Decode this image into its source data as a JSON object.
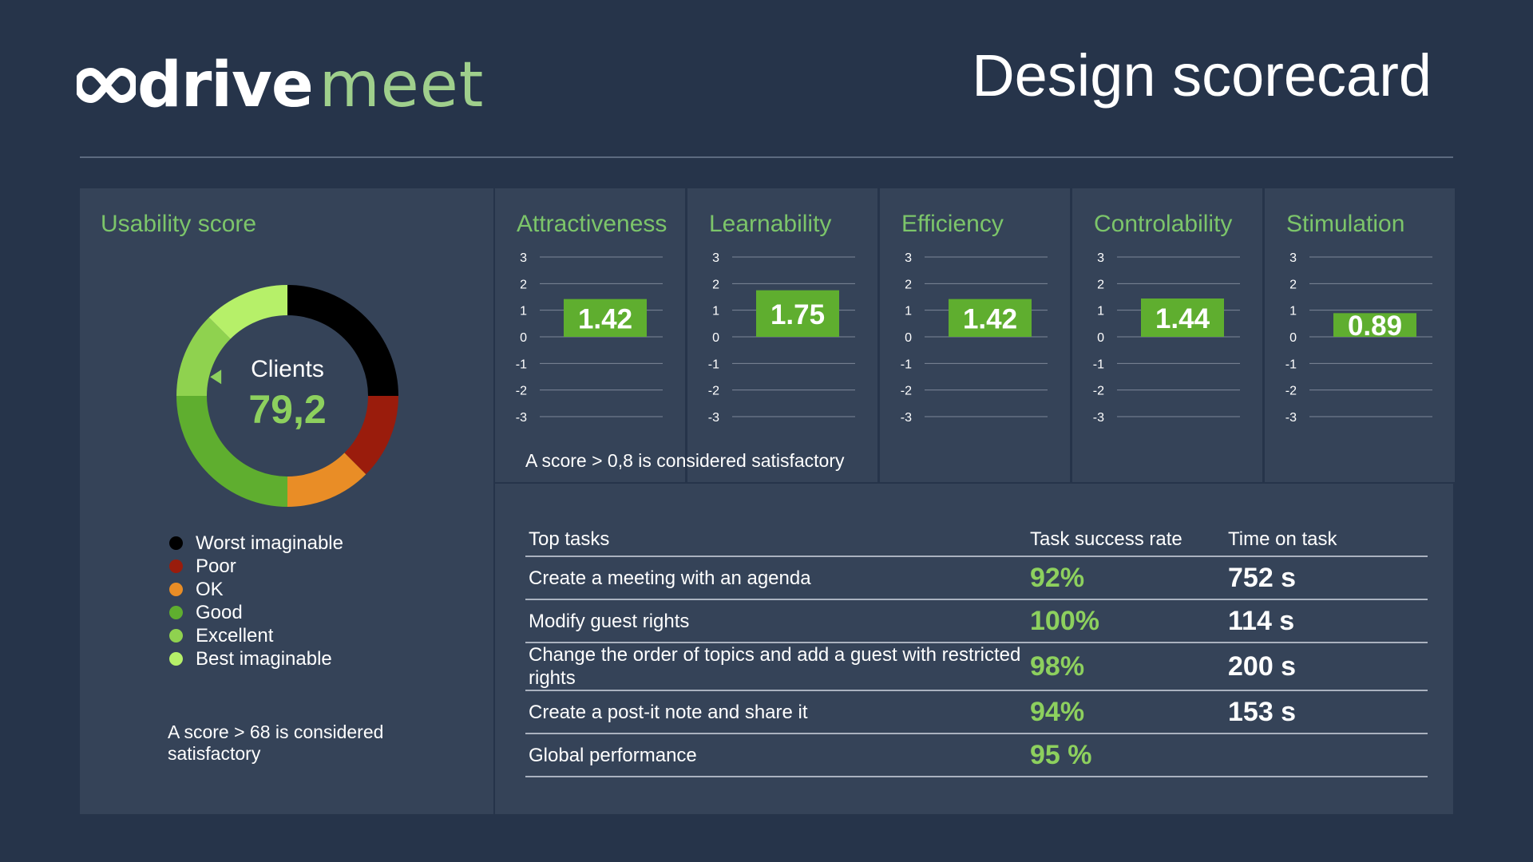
{
  "brand": {
    "logo_main": "drive",
    "logo_sub": "meet",
    "logo_icon": "infinity-icon",
    "logo_sub_color": "#9fcf8c"
  },
  "header": {
    "title": "Design scorecard"
  },
  "usability": {
    "title": "Usability score",
    "center_label": "Clients",
    "center_value": "79,2",
    "score": 79.2,
    "legend": [
      {
        "label": "Worst imaginable",
        "color": "#000000"
      },
      {
        "label": "Poor",
        "color": "#9a1c0c"
      },
      {
        "label": "OK",
        "color": "#e98d26"
      },
      {
        "label": "Good",
        "color": "#5fae2f"
      },
      {
        "label": "Excellent",
        "color": "#8fd24f"
      },
      {
        "label": "Best imaginable",
        "color": "#b6f069"
      }
    ],
    "segments_pct": [
      25,
      12.5,
      12.5,
      25,
      12.5,
      12.5
    ],
    "marker_icon": "triangle-pointer-icon",
    "note": "A score > 68 is considered satisfactory"
  },
  "metrics": [
    {
      "title": "Attractiveness",
      "value_label": "1.42",
      "value": 1.42
    },
    {
      "title": "Learnability",
      "value_label": "1.75",
      "value": 1.75
    },
    {
      "title": "Efficiency",
      "value_label": "1.42",
      "value": 1.42
    },
    {
      "title": "Controlability",
      "value_label": "1.44",
      "value": 1.44
    },
    {
      "title": "Stimulation",
      "value_label": "0.89",
      "value": 0.89
    }
  ],
  "metric_axis": {
    "ticks": [
      "3",
      "2",
      "1",
      "0",
      "-1",
      "-2",
      "-3"
    ],
    "ylim": [
      -3,
      3
    ],
    "bar_color": "#5fae2f"
  },
  "metrics_note": "A score > 0,8 is considered satisfactory",
  "tasks": {
    "headers": [
      "Top tasks",
      "Task success rate",
      "Time on task"
    ],
    "rows": [
      {
        "task": "Create a meeting with an agenda",
        "rate": "92%",
        "time": "752 s"
      },
      {
        "task": "Modify guest rights",
        "rate": "100%",
        "time": "114 s"
      },
      {
        "task": "Change the order of topics and add a guest with restricted rights",
        "rate": "98%",
        "time": "200 s"
      },
      {
        "task": "Create a post-it note and share it",
        "rate": "94%",
        "time": "153 s"
      },
      {
        "task": "Global performance",
        "rate": "95 %",
        "time": ""
      }
    ]
  }
}
